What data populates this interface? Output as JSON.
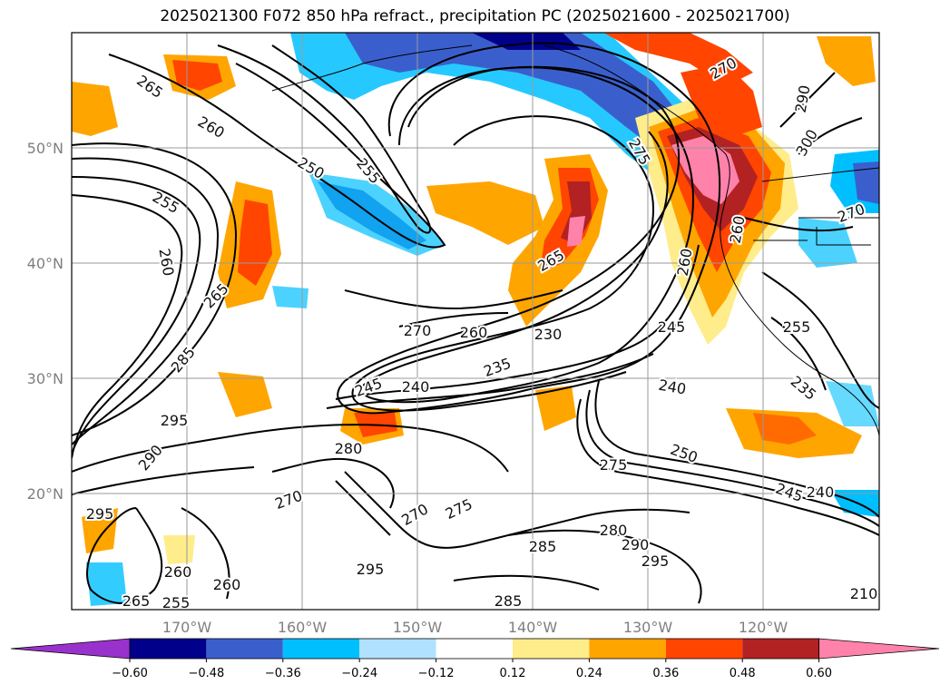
{
  "title": "2025021300 F072 850 hPa refract., precipitation PC (2025021600 - 2025021700)",
  "lat_ticks": [
    "50°N",
    "40°N",
    "30°N",
    "20°N"
  ],
  "lon_ticks": [
    "170°W",
    "160°W",
    "150°W",
    "140°W",
    "130°W",
    "120°W"
  ],
  "colorbar": {
    "ticks": [
      "−0.60",
      "−0.48",
      "−0.36",
      "−0.24",
      "−0.12",
      "0.12",
      "0.24",
      "0.36",
      "0.48",
      "0.60"
    ],
    "colors": [
      "#9932cc",
      "#00008b",
      "#3a5fcd",
      "#00bfff",
      "#b0e2ff",
      "#ffffff",
      "#ffec8b",
      "#ffa500",
      "#ff4500",
      "#b22222",
      "#ff82ab"
    ]
  },
  "contour_labels": [
    "265",
    "260",
    "250",
    "255",
    "255",
    "260",
    "265",
    "285",
    "295",
    "290",
    "295",
    "270",
    "280",
    "270",
    "275",
    "260",
    "245",
    "240",
    "235",
    "270",
    "265",
    "275",
    "260",
    "245",
    "240",
    "255",
    "235",
    "250",
    "275",
    "245",
    "240",
    "280",
    "285",
    "290",
    "295",
    "295",
    "285",
    "270",
    "270",
    "290",
    "300",
    "260",
    "260",
    "265",
    "260",
    "255",
    "230",
    "210"
  ]
}
